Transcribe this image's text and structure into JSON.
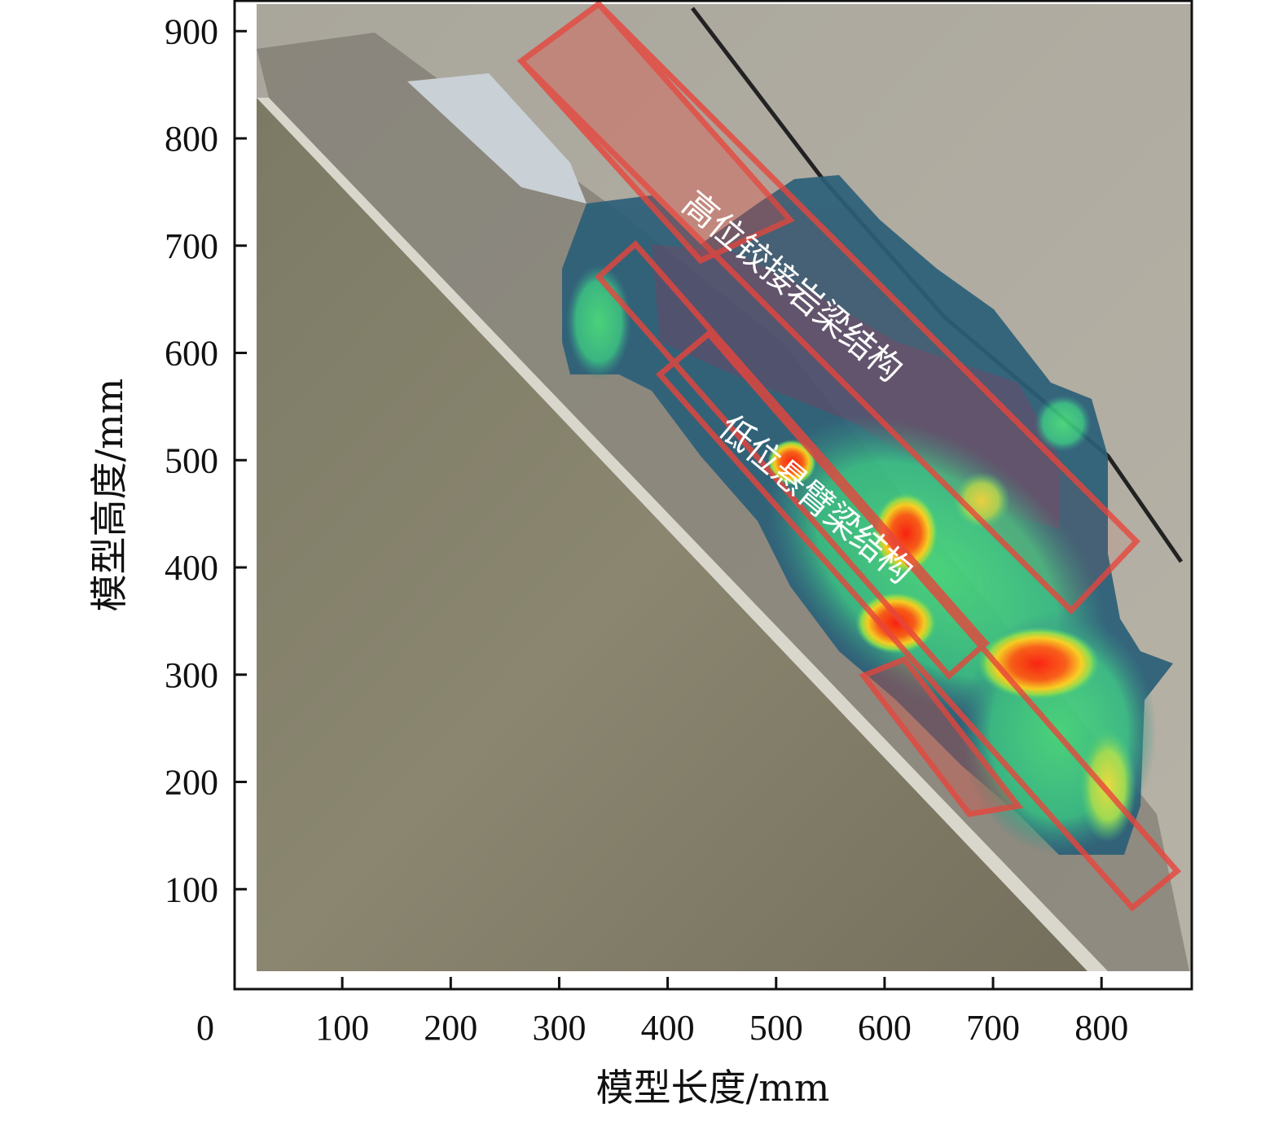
{
  "chart_data": {
    "type": "heatmap",
    "title": "",
    "xlabel": "模型长度/mm",
    "ylabel": "模型高度/mm",
    "xlim": [
      0,
      880
    ],
    "ylim": [
      0,
      920
    ],
    "x_ticks": [
      0,
      100,
      200,
      300,
      400,
      500,
      600,
      700,
      800
    ],
    "x_tick_labels": [
      "0",
      "100",
      "200",
      "300",
      "400",
      "500",
      "600",
      "700",
      "800"
    ],
    "y_ticks": [
      100,
      200,
      300,
      400,
      500,
      600,
      700,
      800,
      900
    ],
    "y_tick_labels": [
      "100",
      "200",
      "300",
      "400",
      "500",
      "600",
      "700",
      "800",
      "900"
    ],
    "background": "photograph of a physical model with collapsed rock layers",
    "overlay": "displacement magnitude contour map with vector arrows",
    "annotations": [
      {
        "text": "高位铰接岩梁结构"
      },
      {
        "text": "低位悬臂梁结构"
      }
    ],
    "colors": {
      "contour_low": "#2b5f78",
      "contour_mid": "#3fcf7a",
      "contour_high": "#ff2a10",
      "contour_peak": "#ffd21a",
      "frame_boxes": "#e8453c"
    }
  }
}
